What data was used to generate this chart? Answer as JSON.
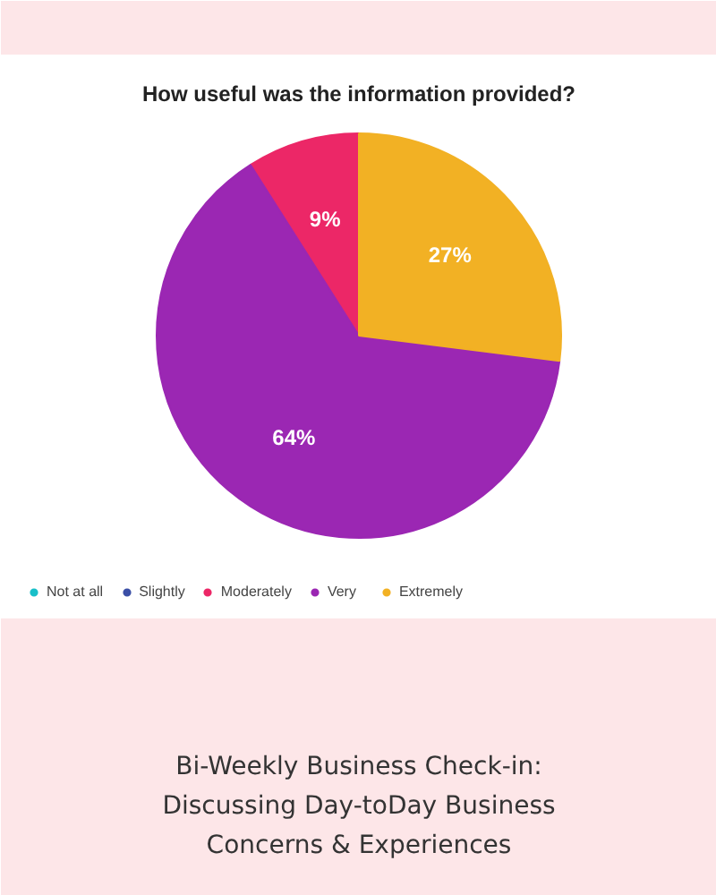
{
  "chart_data": {
    "type": "pie",
    "title": "How useful was the information provided?",
    "categories": [
      "Not at all",
      "Slightly",
      "Moderately",
      "Very",
      "Extremely"
    ],
    "values": [
      0,
      0,
      9,
      64,
      27
    ],
    "colors": [
      "#19bfc9",
      "#3b4fa6",
      "#ec2767",
      "#9b27b3",
      "#f2b124"
    ],
    "value_labels": [
      null,
      null,
      "9%",
      "64%",
      "27%"
    ],
    "legend": "bottom",
    "annotations": [
      "Bi-Weekly Business Check-in:",
      "Discussing Day-toDay Business",
      "Concerns & Experiences"
    ]
  }
}
